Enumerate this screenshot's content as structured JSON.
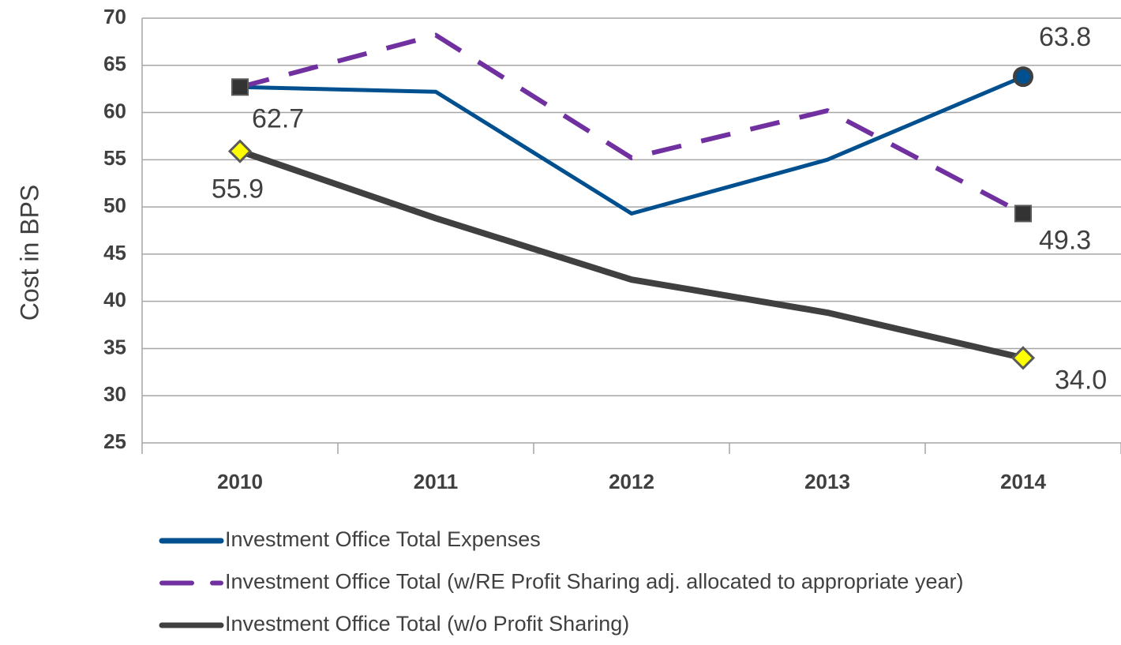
{
  "chart_data": {
    "type": "line",
    "y_label": "Cost in BPS",
    "categories": [
      "2010",
      "2011",
      "2012",
      "2013",
      "2014"
    ],
    "ylim": [
      25,
      70
    ],
    "yticks": [
      25,
      30,
      35,
      40,
      45,
      50,
      55,
      60,
      65,
      70
    ],
    "grid": true,
    "legend": "bottom",
    "series": [
      {
        "name": "Investment Office Total Expenses",
        "color": "#00508f",
        "dash": "solid",
        "marker": "circle",
        "values": [
          62.7,
          62.2,
          49.3,
          55.0,
          63.8
        ],
        "value_labels": [
          null,
          null,
          null,
          null,
          "63.8"
        ]
      },
      {
        "name": "Investment Office Total (w/RE Profit Sharing adj. allocated to appropriate year)",
        "color": "#7030a0",
        "dash": "dashed",
        "marker": "square",
        "values": [
          62.7,
          68.2,
          55.2,
          60.2,
          49.3
        ],
        "value_labels": [
          "62.7",
          null,
          null,
          null,
          "49.3"
        ]
      },
      {
        "name": "Investment Office Total (w/o Profit Sharing)",
        "color": "#404040",
        "dash": "solid",
        "marker": "diamond",
        "values": [
          55.9,
          48.8,
          42.3,
          38.8,
          34.0
        ],
        "value_labels": [
          "55.9",
          null,
          null,
          null,
          "34.0"
        ]
      }
    ]
  }
}
